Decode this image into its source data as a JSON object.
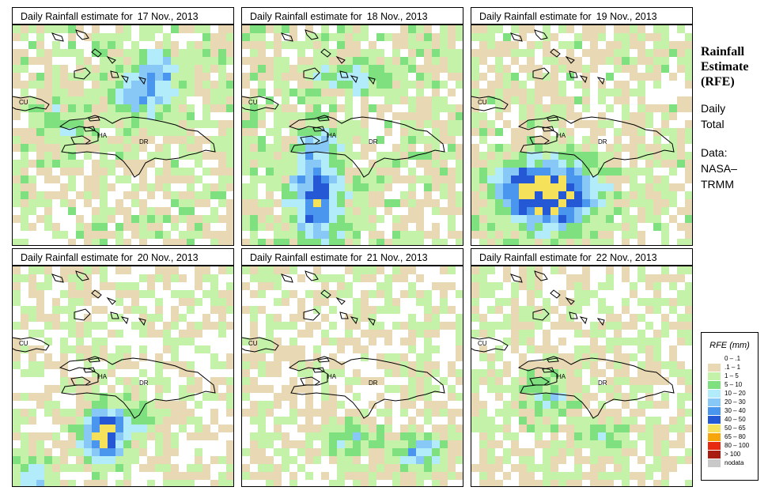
{
  "panels": [
    {
      "title": "Daily Rainfall estimate for",
      "date": "17 Nov., 2013",
      "pattern": "d17"
    },
    {
      "title": "Daily Rainfall estimate for",
      "date": "18 Nov., 2013",
      "pattern": "d18"
    },
    {
      "title": "Daily Rainfall estimate for",
      "date": "19 Nov., 2013",
      "pattern": "d19"
    },
    {
      "title": "Daily Rainfall estimate for",
      "date": "20 Nov., 2013",
      "pattern": "d20"
    },
    {
      "title": "Daily Rainfall estimate for",
      "date": "21 Nov., 2013",
      "pattern": "d21"
    },
    {
      "title": "Daily Rainfall estimate for",
      "date": "22 Nov., 2013",
      "pattern": "d22"
    }
  ],
  "map_labels": {
    "cuba": "CU",
    "haiti": "HA",
    "dominican_republic": "DR"
  },
  "side": {
    "title_line1": "Rainfall",
    "title_line2": "Estimate",
    "title_line3": "(RFE)",
    "period_line1": "Daily",
    "period_line2": "Total",
    "data_label": "Data:",
    "data_source_line1": "NASA–",
    "data_source_line2": "TRMM"
  },
  "legend": {
    "title": "RFE (mm)",
    "items": [
      {
        "label": "0 – .1",
        "color": "#ffffff"
      },
      {
        "label": ".1 – 1",
        "color": "#e8d8b4"
      },
      {
        "label": "1 – 5",
        "color": "#c4f2a8"
      },
      {
        "label": "5 – 10",
        "color": "#7ee07e"
      },
      {
        "label": "10 – 20",
        "color": "#b2ecfa"
      },
      {
        "label": "20 – 30",
        "color": "#88c8f6"
      },
      {
        "label": "30 – 40",
        "color": "#4a96ee"
      },
      {
        "label": "40 – 50",
        "color": "#2458d4"
      },
      {
        "label": "50 – 65",
        "color": "#f6e25a"
      },
      {
        "label": "65 – 80",
        "color": "#f6a60a"
      },
      {
        "label": "80 – 100",
        "color": "#e82a10"
      },
      {
        "label": "> 100",
        "color": "#a81c12"
      },
      {
        "label": "nodata",
        "color": "#c8c8c8"
      }
    ]
  }
}
